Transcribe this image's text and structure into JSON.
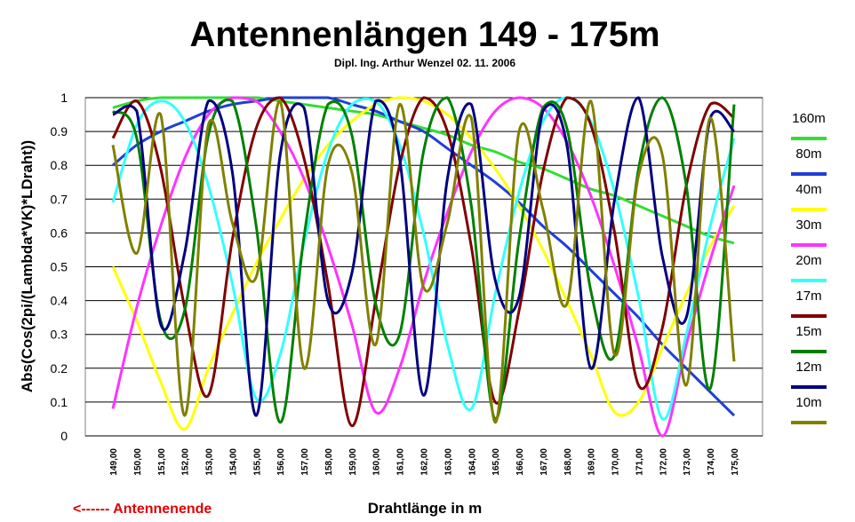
{
  "chart_data": {
    "type": "line",
    "title": "Antennenlängen 149 - 175m",
    "subtitle": "Dipl. Ing. Arthur Wenzel  02. 11. 2006",
    "xlabel": "Drahtlänge in m",
    "ylabel": "Abs(Cos(2pi/(Lambda*VK)*LDraht))",
    "annotation": "<------  Antennenende",
    "xlim": [
      149,
      175
    ],
    "ylim": [
      0,
      1
    ],
    "grid": "horizontal",
    "legend_position": "right",
    "y_ticks": [
      "0",
      "0.1",
      "0.2",
      "0.3",
      "0.4",
      "0.5",
      "0.6",
      "0.7",
      "0.8",
      "0.9",
      "1"
    ],
    "x_ticks": [
      "149,00",
      "150,00",
      "151,00",
      "152,00",
      "153,00",
      "154,00",
      "155,00",
      "156,00",
      "157,00",
      "158,00",
      "159,00",
      "160,00",
      "161,00",
      "162,00",
      "163,00",
      "164,00",
      "165,00",
      "166,00",
      "167,00",
      "168,00",
      "169,00",
      "170,00",
      "171,00",
      "172,00",
      "173,00",
      "174,00",
      "175,00"
    ],
    "series": [
      {
        "name": "160m",
        "color": "#33dd33",
        "y": [
          0.97,
          0.99,
          1.0,
          1.0,
          1.0,
          1.0,
          1.0,
          0.99,
          0.98,
          0.97,
          0.96,
          0.95,
          0.93,
          0.91,
          0.89,
          0.86,
          0.84,
          0.81,
          0.79,
          0.76,
          0.73,
          0.71,
          0.68,
          0.65,
          0.62,
          0.59,
          0.57
        ]
      },
      {
        "name": "80m",
        "color": "#1f3fd9",
        "y": [
          0.8,
          0.86,
          0.9,
          0.93,
          0.96,
          0.98,
          0.99,
          1.0,
          1.0,
          1.0,
          0.98,
          0.96,
          0.93,
          0.9,
          0.85,
          0.8,
          0.75,
          0.69,
          0.62,
          0.56,
          0.49,
          0.42,
          0.35,
          0.27,
          0.2,
          0.13,
          0.06
        ]
      },
      {
        "name": "40m",
        "color": "#ffff00",
        "y": [
          0.5,
          0.34,
          0.16,
          0.02,
          0.2,
          0.36,
          0.51,
          0.64,
          0.76,
          0.86,
          0.93,
          0.98,
          1.0,
          0.99,
          0.95,
          0.88,
          0.79,
          0.68,
          0.55,
          0.4,
          0.24,
          0.07,
          0.1,
          0.26,
          0.42,
          0.56,
          0.68
        ]
      },
      {
        "name": "30m",
        "color": "#ff33ff",
        "y": [
          0.08,
          0.38,
          0.62,
          0.82,
          0.95,
          1.0,
          0.99,
          0.9,
          0.76,
          0.56,
          0.33,
          0.07,
          0.2,
          0.45,
          0.66,
          0.84,
          0.96,
          1.0,
          0.97,
          0.87,
          0.71,
          0.5,
          0.26,
          0.0,
          0.27,
          0.52,
          0.74
        ]
      },
      {
        "name": "20m",
        "color": "#33ffff",
        "y": [
          0.69,
          0.92,
          0.99,
          0.93,
          0.74,
          0.45,
          0.11,
          0.24,
          0.57,
          0.84,
          0.98,
          0.99,
          0.86,
          0.6,
          0.27,
          0.08,
          0.42,
          0.72,
          0.93,
          1.0,
          0.93,
          0.72,
          0.41,
          0.05,
          0.3,
          0.62,
          0.88
        ]
      },
      {
        "name": "17m",
        "color": "#800000",
        "y": [
          0.88,
          0.99,
          0.79,
          0.38,
          0.12,
          0.58,
          0.91,
          1.0,
          0.82,
          0.45,
          0.03,
          0.4,
          0.8,
          1.0,
          0.9,
          0.56,
          0.1,
          0.37,
          0.78,
          1.0,
          0.92,
          0.6,
          0.15,
          0.32,
          0.74,
          0.98,
          0.94
        ]
      },
      {
        "name": "15m",
        "color": "#008000",
        "y": [
          0.96,
          0.88,
          0.34,
          0.37,
          0.89,
          0.99,
          0.62,
          0.04,
          0.59,
          0.98,
          0.89,
          0.39,
          0.3,
          0.84,
          1.0,
          0.68,
          0.05,
          0.58,
          0.97,
          0.91,
          0.43,
          0.24,
          0.79,
          1.0,
          0.74,
          0.14,
          0.98
        ]
      },
      {
        "name": "12m",
        "color": "#000080",
        "y": [
          0.95,
          0.96,
          0.33,
          0.54,
          0.99,
          0.78,
          0.06,
          0.83,
          0.97,
          0.4,
          0.48,
          0.99,
          0.82,
          0.12,
          0.76,
          0.98,
          0.46,
          0.41,
          0.96,
          0.86,
          0.2,
          0.7,
          1.0,
          0.53,
          0.35,
          0.94,
          0.9
        ]
      },
      {
        "name": "10m",
        "color": "#808000",
        "y": [
          0.86,
          0.54,
          0.95,
          0.06,
          0.92,
          0.63,
          0.47,
          0.99,
          0.2,
          0.8,
          0.78,
          0.27,
          0.98,
          0.44,
          0.63,
          0.94,
          0.04,
          0.9,
          0.67,
          0.39,
          0.99,
          0.24,
          0.77,
          0.83,
          0.15,
          0.94,
          0.22
        ]
      }
    ]
  }
}
